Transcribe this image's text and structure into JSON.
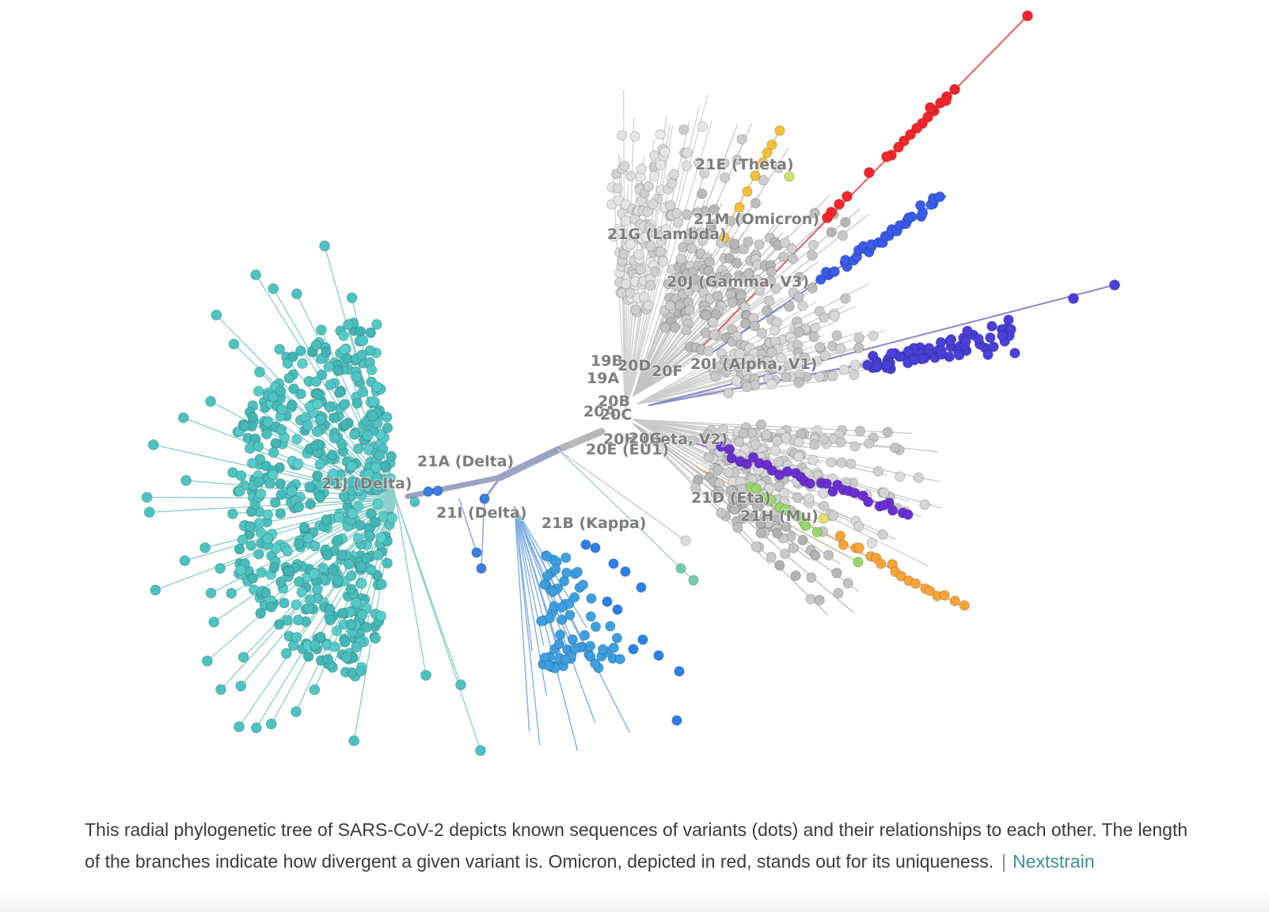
{
  "figure": {
    "clade_labels": [
      "21E (Theta)",
      "21M (Omicron)",
      "21G (Lambda)",
      "20J (Gamma, V3)",
      "19B",
      "20D",
      "20F",
      "20I (Alpha, V1)",
      "19A",
      "20B",
      "20A",
      "20C",
      "20H (Beta, V2)",
      "20G",
      "20E (EU1)",
      "21A (Delta)",
      "21J (Delta)",
      "21I (Delta)",
      "21B (Kappa)",
      "21D (Eta)",
      "21H (Mu)"
    ],
    "colors": {
      "delta_21j": "#4ec2c0",
      "kappa_21b": "#3d9fe0",
      "delta_21i": "#3b7fe0",
      "omicron": "#f0262b",
      "gamma": "#3a5ce8",
      "alpha": "#4a3fd6",
      "beta": "#6a2fd0",
      "theta": "#f2c038",
      "mu": "#98d86a",
      "eta": "#f7a43a",
      "base": "#d3d3d3",
      "trunk": "#9aa4c0"
    }
  },
  "caption": {
    "text": "This radial phylogenetic tree of SARS-CoV-2 depicts known sequences of variants (dots) and their relationships to each other. The length of the branches indicate how divergent a given variant is. Omicron, depicted in red, stands out for its uniqueness.",
    "separator": "|",
    "credit": "Nextstrain"
  }
}
